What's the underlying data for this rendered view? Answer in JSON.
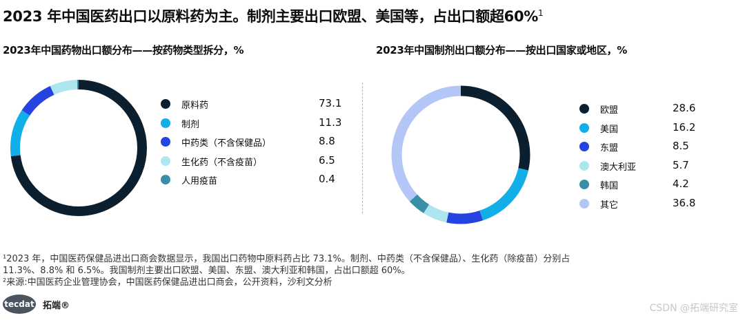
{
  "title": "2023 年中国医药出口以原料药为主。制剂主要出口欧盟、美国等，占出口额超60%",
  "title_footnote_marker": "1",
  "chart_data": [
    {
      "type": "pie",
      "donut": true,
      "title": "2023年中国药物出口额分布——按药物类型拆分，%",
      "categories": [
        "原料药",
        "制剂",
        "中药类（不含保健品）",
        "生化药（不含疫苗）",
        "人用疫苗"
      ],
      "values": [
        73.1,
        11.3,
        8.8,
        6.5,
        0.4
      ],
      "value_labels": [
        "73.1",
        "11.3",
        "8.8",
        "6.5",
        "0.4"
      ],
      "colors": [
        "#0b1f2e",
        "#12aee8",
        "#2443e0",
        "#aee6f0",
        "#3a8fa8"
      ],
      "legend_position": "right"
    },
    {
      "type": "pie",
      "donut": true,
      "title": "2023年中国制剂出口额分布——按出口国家或地区，%",
      "categories": [
        "欧盟",
        "美国",
        "东盟",
        "澳大利亚",
        "韩国",
        "其它"
      ],
      "values": [
        28.6,
        16.2,
        8.5,
        5.7,
        4.2,
        36.8
      ],
      "value_labels": [
        "28.6",
        "16.2",
        "8.5",
        "5.7",
        "4.2",
        "36.8"
      ],
      "colors": [
        "#0b1f2e",
        "#12aee8",
        "#2443e0",
        "#aee6f0",
        "#3a8fa8",
        "#b4c6f5"
      ],
      "legend_position": "right"
    }
  ],
  "footnotes": {
    "fn1_line1": "¹2023 年，中国医药保健品进出口商会数据显示，我国出口药物中原料药占比 73.1%。制剂、中药类（不含保健品）、生化药（除疫苗）分别占",
    "fn1_line2": "11.3%、8.8% 和 6.5%。我国制剂主要出口欧盟、美国、东盟、澳大利亚和韩国，占出口额超 60%。",
    "fn2": "²来源:中国医药企业管理协会，中国医药保健品进出口商会，公开资料，沙利文分析"
  },
  "footer": {
    "logo_text": "tecdat",
    "brand": "拓端®",
    "watermark": "CSDN @拓端研究室"
  }
}
